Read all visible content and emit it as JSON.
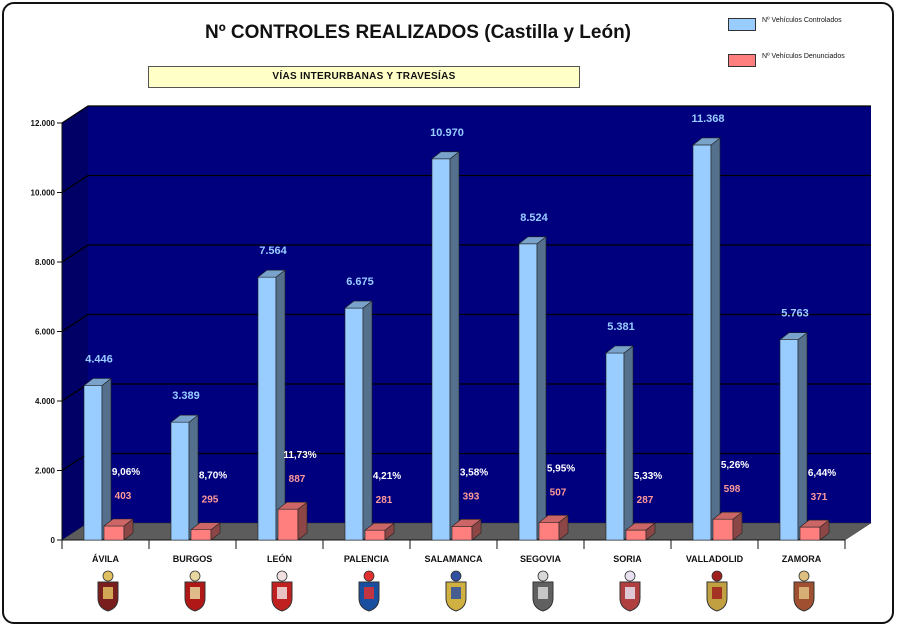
{
  "chart_data": {
    "type": "bar",
    "title": "Nº CONTROLES REALIZADOS (Castilla y León)",
    "subtitle": "VÍAS INTERURBANAS  Y TRAVESÍAS",
    "categories": [
      "ÁVILA",
      "BURGOS",
      "LEÓN",
      "PALENCIA",
      "SALAMANCA",
      "SEGOVIA",
      "SORIA",
      "VALLADOLID",
      "ZAMORA"
    ],
    "series": [
      {
        "name": "Nº Vehículos Controlados",
        "color": "#99ccff",
        "values": [
          4446,
          3389,
          7564,
          6675,
          10970,
          8524,
          5381,
          11368,
          5763
        ],
        "labels": [
          "4.446",
          "3.389",
          "7.564",
          "6.675",
          "10.970",
          "8.524",
          "5.381",
          "11.368",
          "5.763"
        ]
      },
      {
        "name": "Nº Vehículos Denunciados",
        "color": "#ff7f7f",
        "values": [
          403,
          295,
          887,
          281,
          393,
          507,
          287,
          598,
          371
        ],
        "labels": [
          "403",
          "295",
          "887",
          "281",
          "393",
          "507",
          "287",
          "598",
          "371"
        ]
      }
    ],
    "percentages": [
      "9,06%",
      "8,70%",
      "11,73%",
      "4,21%",
      "3,58%",
      "5,95%",
      "5,33%",
      "5,26%",
      "6,44%"
    ],
    "ylim": [
      0,
      12000
    ],
    "yticks": [
      "0",
      "2.000",
      "4.000",
      "6.000",
      "8.000",
      "10.000",
      "12.000"
    ],
    "ytick_values": [
      0,
      2000,
      4000,
      6000,
      8000,
      10000,
      12000
    ],
    "colors": {
      "plot_background": "#00007f",
      "wall_left": "#000066",
      "floor": "#5c5c5c",
      "grid": "#000000",
      "value_label": "#99ccff",
      "red_label": "#ff9999",
      "percent_label": "#ffffff"
    }
  },
  "crests": [
    {
      "province": "ÁVILA",
      "icon": "avila-coat-of-arms-icon"
    },
    {
      "province": "BURGOS",
      "icon": "burgos-coat-of-arms-icon"
    },
    {
      "province": "LEÓN",
      "icon": "leon-coat-of-arms-icon"
    },
    {
      "province": "PALENCIA",
      "icon": "palencia-coat-of-arms-icon"
    },
    {
      "province": "SALAMANCA",
      "icon": "salamanca-coat-of-arms-icon"
    },
    {
      "province": "SEGOVIA",
      "icon": "segovia-coat-of-arms-icon"
    },
    {
      "province": "SORIA",
      "icon": "soria-coat-of-arms-icon"
    },
    {
      "province": "VALLADOLID",
      "icon": "valladolid-coat-of-arms-icon"
    },
    {
      "province": "ZAMORA",
      "icon": "zamora-coat-of-arms-icon"
    }
  ]
}
